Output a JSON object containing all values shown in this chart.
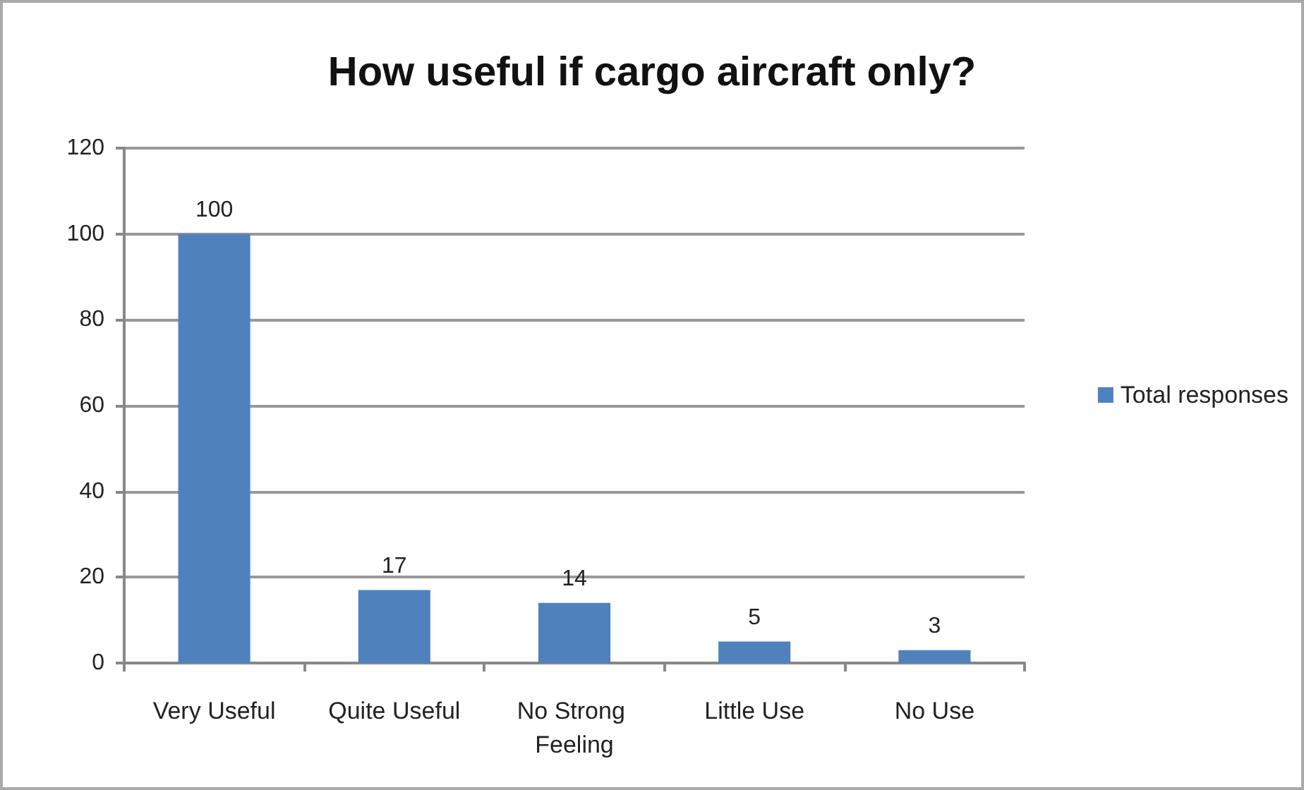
{
  "chart_data": {
    "type": "bar",
    "title": "How useful if cargo aircraft only?",
    "categories": [
      "Very Useful",
      "Quite Useful",
      "No Strong Feeling",
      "Little Use",
      "No Use"
    ],
    "series": [
      {
        "name": "Total responses",
        "color": "#4f81bd",
        "values": [
          100,
          17,
          14,
          5,
          3
        ]
      }
    ],
    "ylim": [
      0,
      120
    ],
    "yticks": [
      0,
      20,
      40,
      60,
      80,
      100,
      120
    ],
    "grid": "y",
    "legend": "right",
    "data_labels": true
  }
}
